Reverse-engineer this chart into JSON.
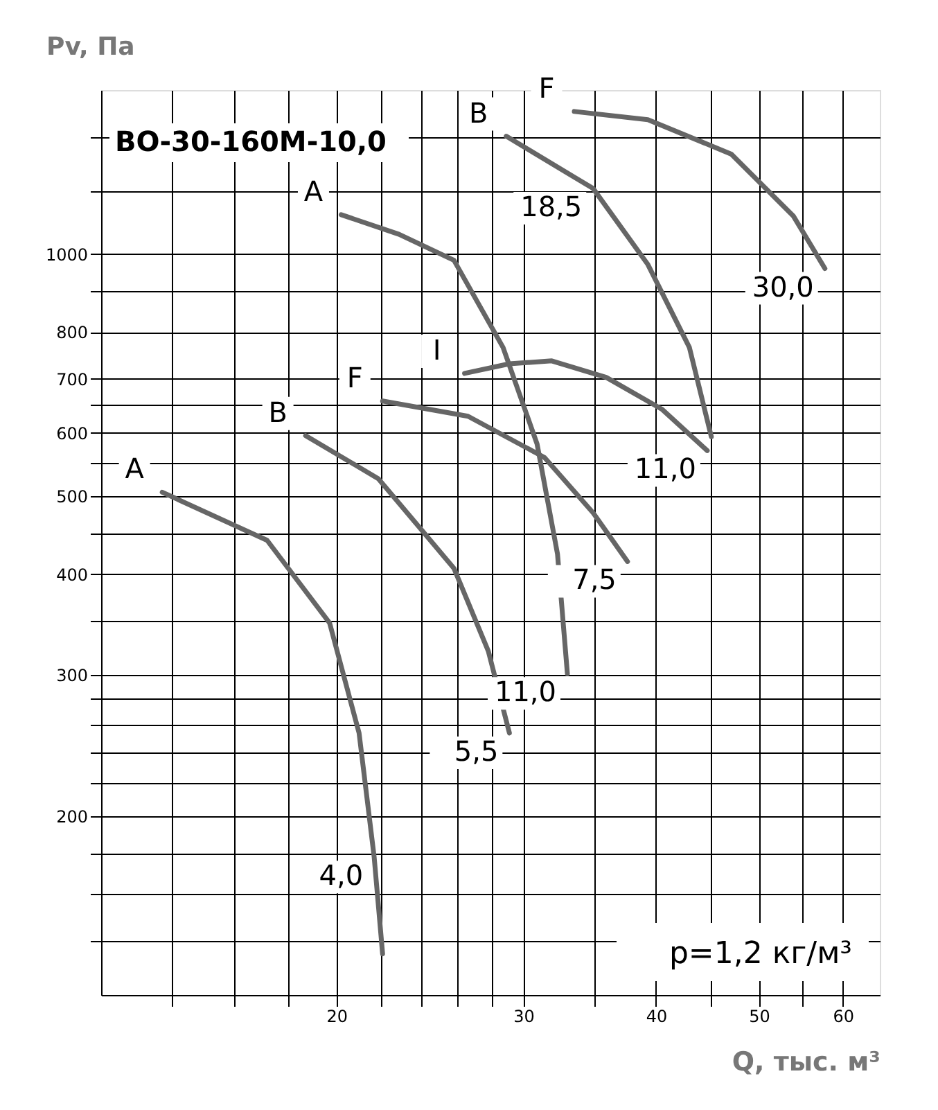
{
  "chart_data": {
    "type": "line",
    "title": "ВО-30-160М-10,0",
    "xlabel": "Q, тыс. м³",
    "ylabel": "Pv, Па",
    "log": "xy",
    "grid": true,
    "legend": false,
    "marker": "none",
    "line_style": "solid",
    "xlim": [
      12,
      65
    ],
    "ylim": [
      120,
      1600
    ],
    "xticks": [
      {
        "value": 14,
        "label": null
      },
      {
        "value": 16,
        "label": null
      },
      {
        "value": 18,
        "label": null
      },
      20,
      {
        "value": 22,
        "label": null
      },
      {
        "value": 24,
        "label": null
      },
      {
        "value": 26,
        "label": null
      },
      {
        "value": 28,
        "label": null
      },
      30,
      {
        "value": 35,
        "label": null
      },
      40,
      {
        "value": 45,
        "label": null
      },
      50,
      {
        "value": 55,
        "label": null
      },
      60
    ],
    "yticks": [
      {
        "value": 140,
        "label": null
      },
      {
        "value": 160,
        "label": null
      },
      {
        "value": 180,
        "label": null
      },
      200,
      {
        "value": 220,
        "label": null
      },
      {
        "value": 240,
        "label": null
      },
      {
        "value": 260,
        "label": null
      },
      {
        "value": 280,
        "label": null
      },
      300,
      {
        "value": 350,
        "label": null
      },
      400,
      {
        "value": 450,
        "label": null
      },
      500,
      {
        "value": 550,
        "label": null
      },
      600,
      {
        "value": 650,
        "label": null
      },
      700,
      800,
      {
        "value": 900,
        "label": null
      },
      1000,
      {
        "value": 1200,
        "label": null
      },
      {
        "value": 1400,
        "label": null
      }
    ],
    "series": [
      {
        "name": "A",
        "color": "#666666",
        "x": [
          13.7,
          17.2,
          19.7,
          21.0,
          21.7,
          22.1
        ],
        "values": [
          506,
          441,
          348,
          254,
          178,
          135
        ]
      },
      {
        "name": "B",
        "color": "#666666",
        "x": [
          18.7,
          21.9,
          25.8,
          27.8,
          29.1
        ],
        "values": [
          595,
          526,
          407,
          321,
          254
        ]
      },
      {
        "name": "F",
        "color": "#666666",
        "x": [
          22.1,
          26.6,
          31.4,
          34.9,
          37.6
        ],
        "values": [
          657,
          629,
          559,
          477,
          415
        ]
      },
      {
        "name": "I",
        "color": "#666666",
        "x": [
          26.4,
          29.1,
          31.9,
          35.9,
          40.5,
          44.7
        ],
        "values": [
          711,
          731,
          737,
          703,
          642,
          570
        ]
      },
      {
        "name": "A",
        "color": "#666666",
        "x": [
          20.2,
          22.9,
          25.8,
          28.7,
          30.9,
          32.3,
          33.0
        ],
        "values": [
          1120,
          1059,
          983,
          766,
          581,
          424,
          301
        ]
      },
      {
        "name": "B",
        "color": "#666666",
        "x": [
          28.9,
          34.9,
          39.3,
          43.0,
          45.1
        ],
        "values": [
          1402,
          1207,
          971,
          766,
          593
        ]
      },
      {
        "name": "F",
        "color": "#666666",
        "x": [
          33.5,
          39.3,
          47.1,
          53.9,
          57.7
        ],
        "values": [
          1505,
          1470,
          1332,
          1115,
          960
        ]
      }
    ],
    "annotations": [
      {
        "text": "4,0",
        "x": 21.7,
        "y": 178
      },
      {
        "text": "5,5",
        "x": 29.1,
        "y": 254
      },
      {
        "text": "7,5",
        "x": 37.6,
        "y": 415
      },
      {
        "text": "11,0",
        "x": 44.7,
        "y": 570
      },
      {
        "text": "11,0",
        "x": 33.0,
        "y": 301
      },
      {
        "text": "18,5",
        "x": 34.9,
        "y": 1207
      },
      {
        "text": "30,0",
        "x": 57.7,
        "y": 960
      },
      "p=1,2 кг/м³"
    ]
  }
}
